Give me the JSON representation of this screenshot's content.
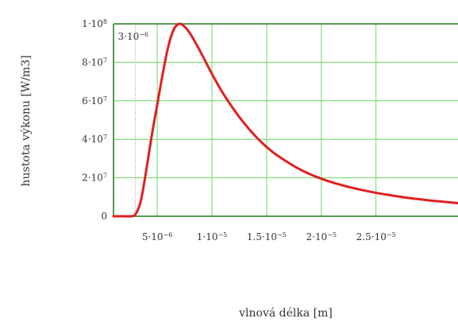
{
  "chart_data": {
    "type": "line",
    "title": "",
    "xlabel": "vlnová délka [m]",
    "ylabel": "hustota výkonu [W/m3]",
    "xlim": [
      1e-06,
      3.25e-05
    ],
    "ylim": [
      0,
      100000000.0
    ],
    "grid": true,
    "grid_color": "#66dd66",
    "line_color": "#e02020",
    "x_ticks": [
      {
        "value": 5e-06,
        "mantissa": "5",
        "exp": "−6"
      },
      {
        "value": 1e-05,
        "mantissa": "1",
        "exp": "−5"
      },
      {
        "value": 1.5e-05,
        "mantissa": "1.5",
        "exp": "−5"
      },
      {
        "value": 2e-05,
        "mantissa": "2",
        "exp": "−5"
      },
      {
        "value": 2.5e-05,
        "mantissa": "2.5",
        "exp": "−5"
      }
    ],
    "y_ticks": [
      {
        "value": 0,
        "mantissa": "0",
        "exp": ""
      },
      {
        "value": 20000000.0,
        "mantissa": "2",
        "exp": "7"
      },
      {
        "value": 40000000.0,
        "mantissa": "4",
        "exp": "7"
      },
      {
        "value": 60000000.0,
        "mantissa": "6",
        "exp": "7"
      },
      {
        "value": 80000000.0,
        "mantissa": "8",
        "exp": "7"
      },
      {
        "value": 100000000.0,
        "mantissa": "1",
        "exp": "8"
      }
    ],
    "marker": {
      "x": 3e-06,
      "mantissa": "3",
      "exp": "−6",
      "color": "#e08080"
    },
    "series": [
      {
        "x": [
          1e-06,
          2e-06,
          2.5e-06,
          3e-06,
          3.5e-06,
          4e-06,
          4.5e-06,
          5e-06,
          5.5e-06,
          6e-06,
          6.5e-06,
          7e-06,
          7.5e-06,
          8e-06,
          9e-06,
          1e-05,
          1.1e-05,
          1.2e-05,
          1.3e-05,
          1.4e-05,
          1.5e-05,
          1.6e-05,
          1.8e-05,
          2e-05,
          2.2e-05,
          2.4e-05,
          2.6e-05,
          2.8e-05,
          3e-05,
          3.25e-05
        ],
        "y": [
          0,
          0,
          0,
          1000000.0,
          8000000.0,
          24000000.0,
          42000000.0,
          58000000.0,
          74000000.0,
          88000000.0,
          97000000.0,
          100000000.0,
          98500000.0,
          95000000.0,
          85000000.0,
          74000000.0,
          64000000.0,
          55500000.0,
          48000000.0,
          41500000.0,
          36000000.0,
          31500000.0,
          24500000.0,
          19500000.0,
          16000000.0,
          13300000.0,
          11200000.0,
          9500000.0,
          8200000.0,
          6800000.0
        ]
      }
    ]
  }
}
